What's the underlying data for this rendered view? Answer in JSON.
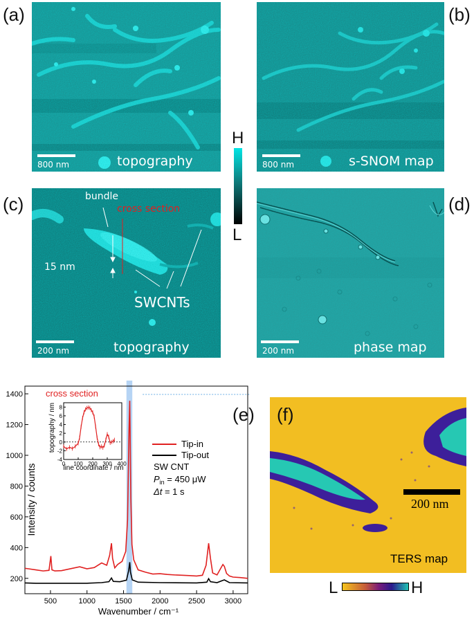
{
  "panels": {
    "a": {
      "letter": "(a)",
      "label": "topography",
      "scale": "800 nm"
    },
    "b": {
      "letter": "(b)",
      "label": "s-SNOM map",
      "scale": "800 nm"
    },
    "c": {
      "letter": "(c)",
      "label": "topography",
      "scale": "200 nm",
      "annotations": {
        "bundle": "bundle",
        "cross_section": "cross section",
        "height": "15 nm",
        "swcnts": "SWCNTs"
      }
    },
    "d": {
      "letter": "(d)",
      "label": "phase map",
      "scale": "200 nm"
    },
    "e": {
      "letter": "(e)"
    },
    "f": {
      "letter": "(f)",
      "label": "TERS map",
      "scale": "200 nm"
    }
  },
  "colorbar_afm": {
    "high": "H",
    "low": "L",
    "colors": [
      "#00e5e5",
      "#000000"
    ]
  },
  "colorbar_ters": {
    "low": "L",
    "high": "H",
    "colors": [
      "#f5c41d",
      "#7a1c7a",
      "#2a1a8c",
      "#21c4b4"
    ]
  },
  "chart_data": [
    {
      "type": "line",
      "xlabel": "Wavenumber / cm⁻¹",
      "ylabel": "Intensity / counts",
      "xlim": [
        150,
        3200
      ],
      "ylim": [
        100,
        1450
      ],
      "xticks": [
        500,
        1000,
        1500,
        2000,
        2500,
        3000
      ],
      "yticks": [
        200,
        400,
        600,
        800,
        1000,
        1200,
        1400
      ],
      "highlight_band": [
        1540,
        1620
      ],
      "legend": {
        "placement": "right",
        "entries": [
          "Tip-in",
          "Tip-out"
        ]
      },
      "info": {
        "line1": "SW CNT",
        "pin_sym": "P",
        "pin_sub": "in",
        "pin_rest": " = 450 μW",
        "dt_sym": "Δt",
        "dt_rest": " = 1 s"
      },
      "series": [
        {
          "name": "Tip-in",
          "color": "#e02020",
          "x": [
            150,
            200,
            300,
            400,
            480,
            505,
            520,
            560,
            650,
            800,
            900,
            1000,
            1100,
            1200,
            1270,
            1310,
            1335,
            1350,
            1380,
            1420,
            1480,
            1530,
            1555,
            1575,
            1585,
            1592,
            1600,
            1615,
            1640,
            1700,
            1800,
            1900,
            2000,
            2100,
            2200,
            2300,
            2400,
            2500,
            2580,
            2630,
            2665,
            2690,
            2720,
            2780,
            2830,
            2860,
            2880,
            2910,
            2950,
            3000,
            3100,
            3200
          ],
          "y": [
            265,
            262,
            255,
            248,
            252,
            345,
            255,
            248,
            250,
            265,
            275,
            262,
            270,
            300,
            285,
            350,
            428,
            330,
            268,
            290,
            310,
            375,
            580,
            1160,
            1355,
            1080,
            720,
            420,
            320,
            255,
            240,
            228,
            230,
            225,
            222,
            220,
            218,
            215,
            220,
            285,
            428,
            330,
            235,
            222,
            265,
            290,
            278,
            232,
            215,
            208,
            205,
            200
          ]
        },
        {
          "name": "Tip-out",
          "color": "#000000",
          "x": [
            150,
            300,
            500,
            800,
            1000,
            1200,
            1300,
            1335,
            1360,
            1450,
            1540,
            1570,
            1585,
            1595,
            1620,
            1700,
            2000,
            2500,
            2640,
            2665,
            2690,
            2780,
            2850,
            2880,
            2950,
            3200
          ],
          "y": [
            170,
            168,
            168,
            168,
            168,
            172,
            178,
            202,
            180,
            178,
            188,
            250,
            305,
            240,
            190,
            175,
            172,
            170,
            175,
            198,
            178,
            172,
            185,
            190,
            172,
            170
          ]
        }
      ]
    },
    {
      "type": "line",
      "title": "cross section",
      "xlabel": "line coordinate / nm",
      "ylabel": "topography / nm",
      "xlim": [
        0,
        400
      ],
      "ylim": [
        -4,
        9
      ],
      "xticks": [
        0,
        100,
        200,
        300,
        400
      ],
      "yticks": [
        -4,
        -2,
        0,
        2,
        4,
        6,
        8
      ],
      "series": [
        {
          "color": "#e02020",
          "x": [
            0,
            20,
            40,
            60,
            80,
            100,
            110,
            120,
            130,
            140,
            150,
            160,
            170,
            180,
            190,
            200,
            210,
            220,
            230,
            240,
            250,
            260,
            270,
            280,
            290,
            300,
            310,
            320,
            330,
            340,
            350
          ],
          "y": [
            -1.0,
            -1.6,
            -1.2,
            -1.5,
            -1.0,
            -0.3,
            1.0,
            3.5,
            5.5,
            6.8,
            7.5,
            7.8,
            7.9,
            7.8,
            7.3,
            6.8,
            5.8,
            3.5,
            1.0,
            -0.5,
            -1.2,
            -1.0,
            -1.3,
            -0.8,
            0.5,
            1.8,
            1.2,
            -0.2,
            0.0,
            0.2,
            0.5
          ]
        }
      ]
    }
  ]
}
